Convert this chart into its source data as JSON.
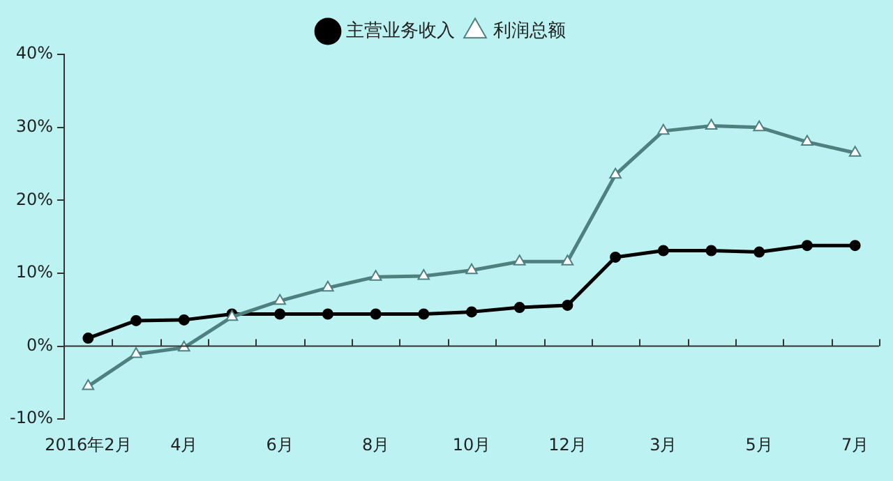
{
  "chart_data": {
    "type": "line",
    "categories": [
      "2016年2月",
      null,
      "4月",
      null,
      "6月",
      null,
      "8月",
      null,
      "10月",
      null,
      "12月",
      null,
      "3月",
      null,
      "5月",
      null,
      "7月"
    ],
    "series": [
      {
        "name": "主营业务收入",
        "color": "#000000",
        "marker": "circle",
        "values": [
          1.1,
          3.5,
          3.6,
          4.4,
          4.4,
          4.4,
          4.4,
          4.4,
          4.7,
          5.3,
          5.6,
          12.2,
          13.1,
          13.1,
          12.9,
          13.8,
          13.8
        ]
      },
      {
        "name": "利润总额",
        "color": "#4f8080",
        "marker": "triangle",
        "values": [
          -5.5,
          -1.1,
          -0.2,
          4.0,
          6.2,
          8.0,
          9.5,
          9.6,
          10.4,
          11.6,
          11.6,
          23.5,
          29.5,
          30.2,
          30.0,
          28.0,
          26.5
        ]
      }
    ],
    "ylim": [
      -10,
      40
    ],
    "yticks": [
      {
        "value": -10,
        "label": "-10%"
      },
      {
        "value": 0,
        "label": "0%"
      },
      {
        "value": 10,
        "label": "10%"
      },
      {
        "value": 20,
        "label": "20%"
      },
      {
        "value": 30,
        "label": "30%"
      },
      {
        "value": 40,
        "label": "40%"
      }
    ],
    "ref_lines": [
      {
        "axis": "y",
        "value": 0,
        "color": "#333333"
      }
    ],
    "grid": false,
    "legend": "top",
    "line_style": "solid"
  }
}
